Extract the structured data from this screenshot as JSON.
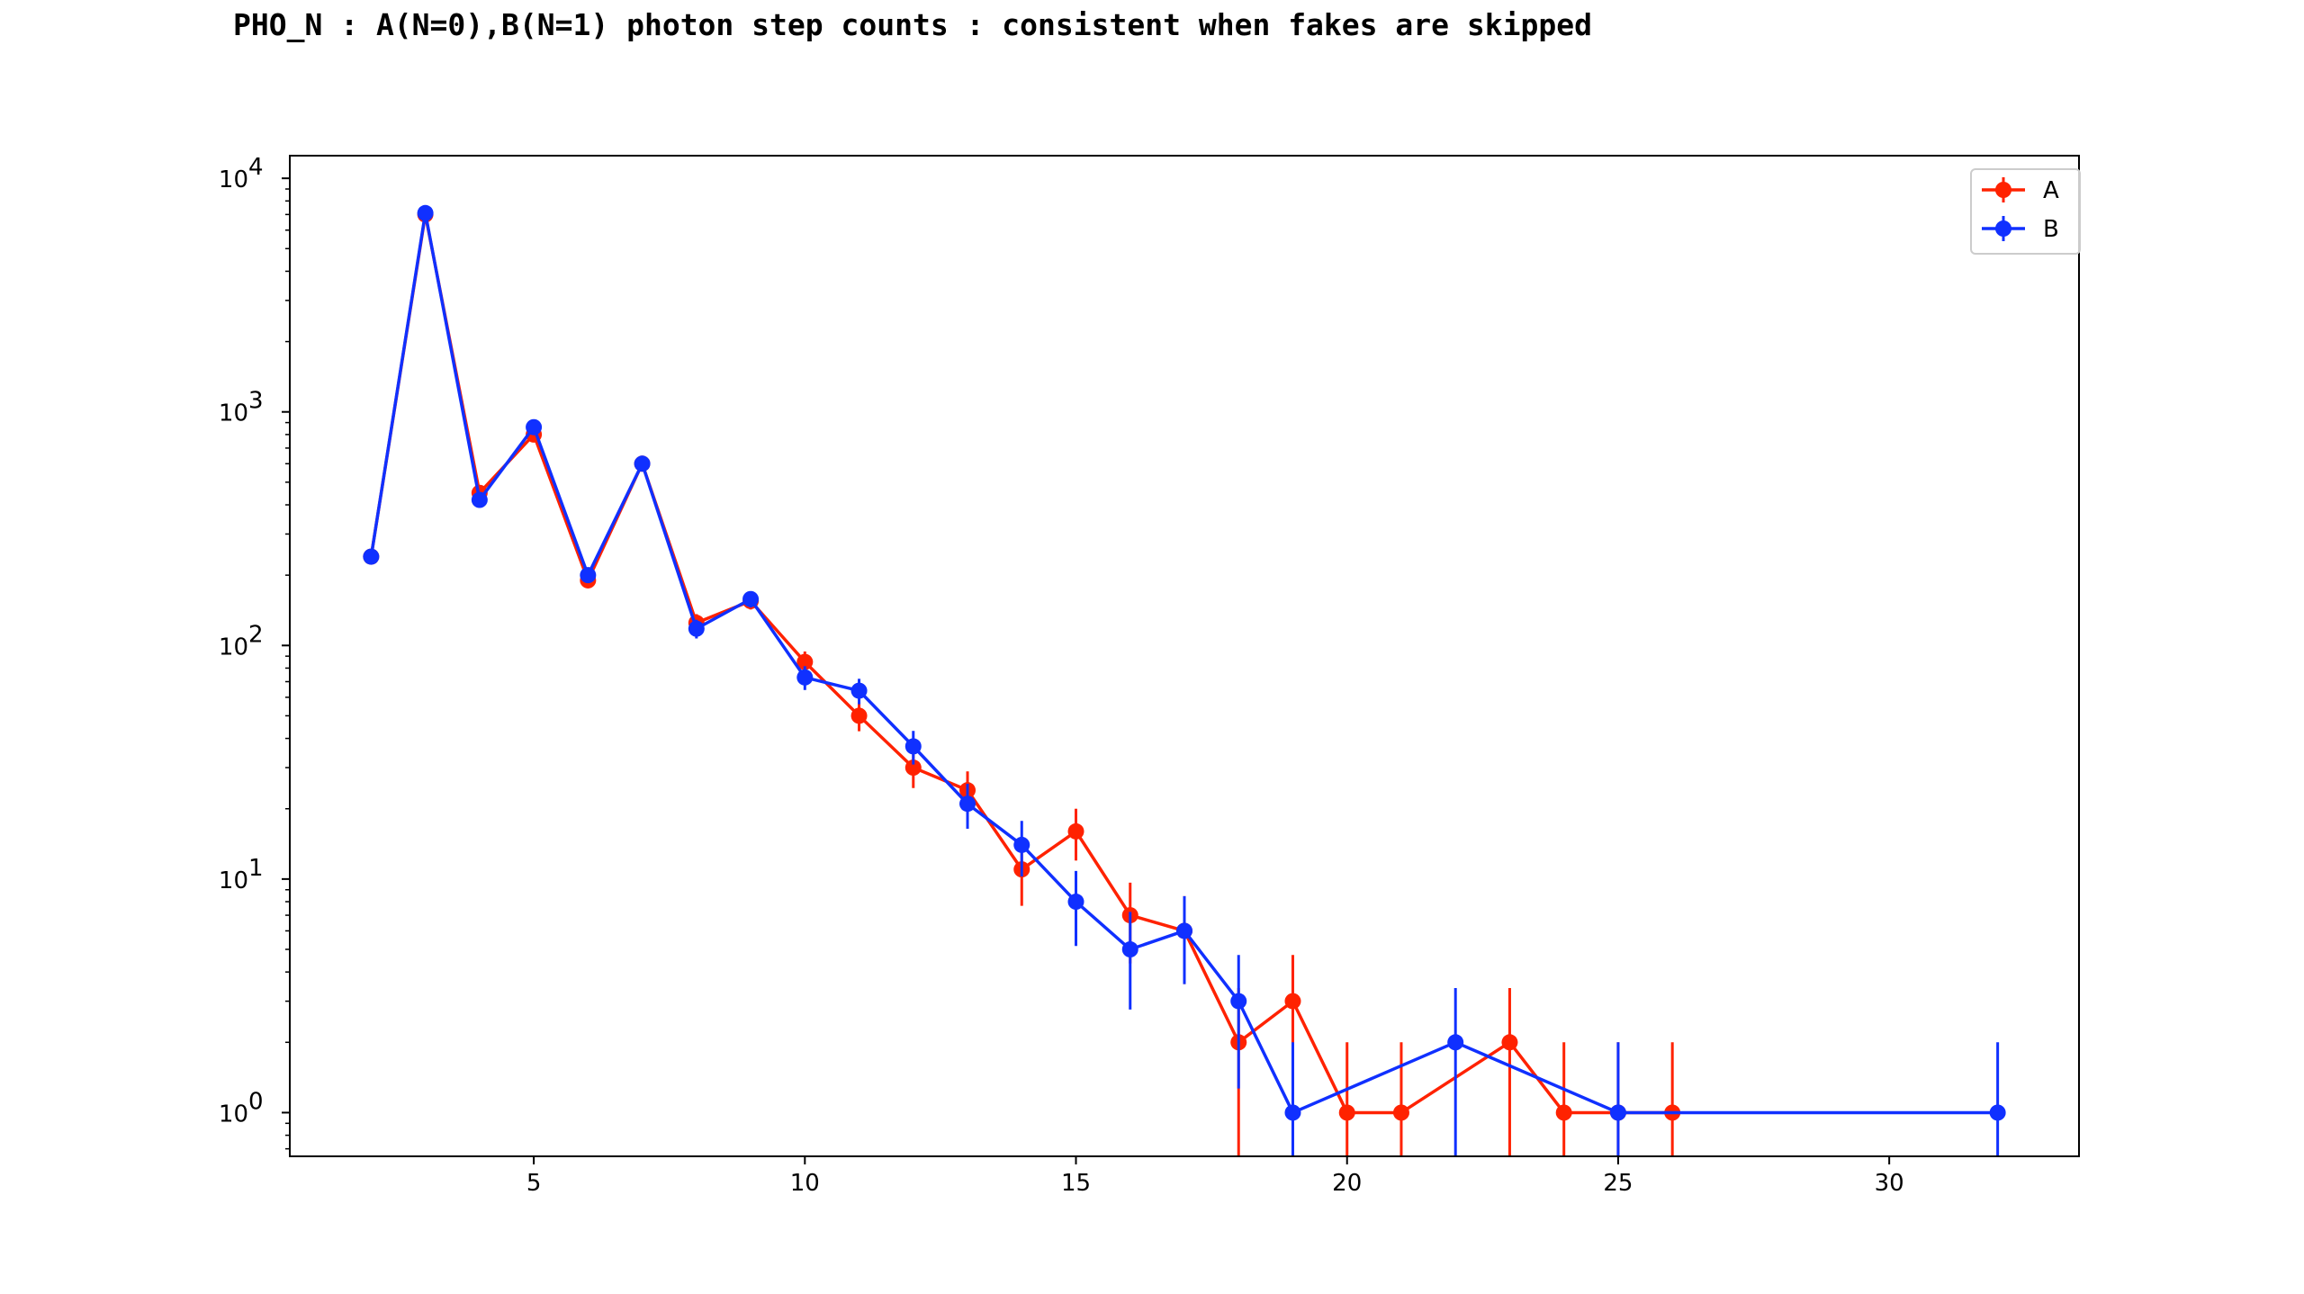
{
  "chart_data": {
    "type": "line",
    "title": "PHO_N : A(N=0),B(N=1) photon step counts : consistent when fakes are skipped",
    "xlabel": "",
    "ylabel": "",
    "xlim": [
      0.5,
      33.5
    ],
    "ylim": [
      0.65,
      12500
    ],
    "yscale": "log",
    "grid": false,
    "legend_position": "top-right",
    "x_ticks": [
      5,
      10,
      15,
      20,
      25,
      30
    ],
    "x_tick_labels": [
      "5",
      "10",
      "15",
      "20",
      "25",
      "30"
    ],
    "y_ticks": [
      1,
      10,
      100,
      1000,
      10000
    ],
    "y_tick_labels": [
      {
        "base": "10",
        "exp": "0"
      },
      {
        "base": "10",
        "exp": "1"
      },
      {
        "base": "10",
        "exp": "2"
      },
      {
        "base": "10",
        "exp": "3"
      },
      {
        "base": "10",
        "exp": "4"
      }
    ],
    "series": [
      {
        "name": "A",
        "color": "#ff2200",
        "x": [
          2,
          3,
          4,
          5,
          6,
          7,
          8,
          9,
          10,
          11,
          12,
          13,
          14,
          15,
          16,
          17,
          18,
          19,
          20,
          21,
          23,
          24,
          25,
          26
        ],
        "y": [
          240,
          7000,
          450,
          800,
          190,
          600,
          125,
          155,
          85,
          50,
          30,
          24,
          11,
          16,
          7,
          6,
          2,
          3,
          1,
          1,
          2,
          1,
          1,
          1
        ]
      },
      {
        "name": "B",
        "color": "#1030ff",
        "x": [
          2,
          3,
          4,
          5,
          6,
          7,
          8,
          9,
          10,
          11,
          12,
          13,
          14,
          15,
          16,
          17,
          18,
          19,
          22,
          25,
          32
        ],
        "y": [
          240,
          7100,
          420,
          860,
          200,
          600,
          118,
          158,
          73,
          64,
          37,
          21,
          14,
          8,
          5,
          6,
          3,
          1,
          2,
          1,
          1
        ]
      }
    ]
  }
}
